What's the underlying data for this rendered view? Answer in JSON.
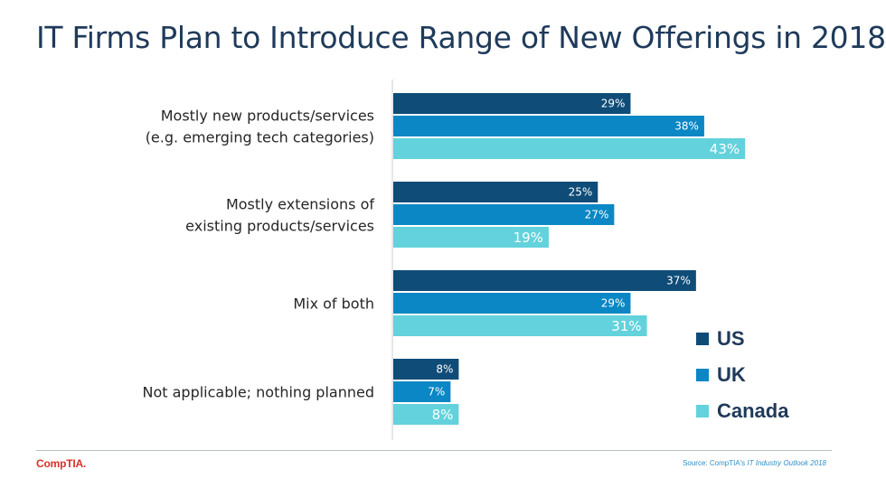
{
  "title": "IT Firms Plan to Introduce Range of New Offerings in 2018",
  "logo": "CompTIA.",
  "source": {
    "prefix": "Source: CompTIA's ",
    "publication": "IT Industry Outlook 2018"
  },
  "colors": {
    "US": "#0f4c78",
    "UK": "#0a87c4",
    "Canada": "#63d2dc",
    "axis": "#c8ccd0",
    "category_text": "#262626"
  },
  "chart_data": {
    "type": "bar",
    "orientation": "horizontal",
    "title": "IT Firms Plan to Introduce Range of New Offerings in 2018",
    "categories": [
      [
        "Mostly new products/services",
        "(e.g. emerging tech categories)"
      ],
      [
        "Mostly extensions of",
        "existing products/services"
      ],
      [
        "Mix of both"
      ],
      [
        "Not applicable; nothing planned"
      ]
    ],
    "series": [
      {
        "name": "US",
        "values": [
          29,
          25,
          37,
          8
        ],
        "labels": [
          "29%",
          "25%",
          "37%",
          "8%"
        ]
      },
      {
        "name": "UK",
        "values": [
          38,
          27,
          29,
          7
        ],
        "labels": [
          "38%",
          "27%",
          "29%",
          "7%"
        ]
      },
      {
        "name": "Canada",
        "values": [
          43,
          19,
          31,
          8
        ],
        "labels": [
          "43%",
          "19%",
          "31%",
          "8%"
        ]
      }
    ],
    "xlim": [
      0,
      100
    ],
    "grid": false,
    "legend": "bottom-right"
  }
}
